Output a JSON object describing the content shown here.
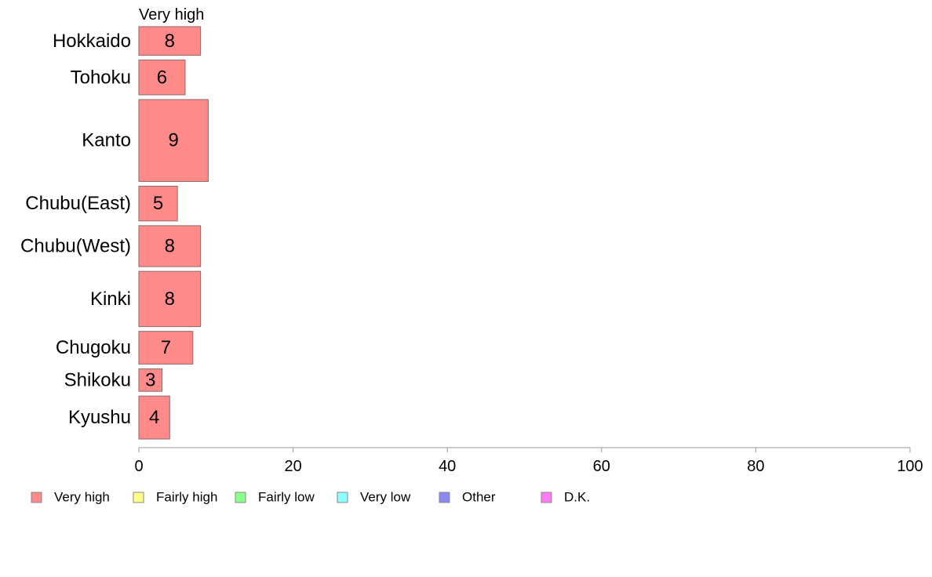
{
  "chart_data": {
    "type": "bar",
    "orientation": "horizontal",
    "stacked": true,
    "categories": [
      "Hokkaido",
      "Tohoku",
      "Kanto",
      "Chubu(East)",
      "Chubu(West)",
      "Kinki",
      "Chugoku",
      "Shikoku",
      "Kyushu"
    ],
    "series": [
      {
        "name": "Very high",
        "values": [
          8,
          6,
          9,
          5,
          8,
          8,
          7,
          3,
          4
        ],
        "color": "#ff8a8a"
      }
    ],
    "relative_sample_size": [
      0.7,
      0.85,
      2.0,
      0.85,
      1.0,
      1.35,
      0.8,
      0.55,
      1.05
    ],
    "series_title": "Very high",
    "xlim": [
      0,
      100
    ],
    "xticks": [
      0,
      20,
      40,
      60,
      80,
      100
    ],
    "grid": false,
    "legend": {
      "position": "bottom",
      "items": [
        {
          "label": "Very high",
          "color": "#ff8a8a"
        },
        {
          "label": "Fairly high",
          "color": "#ffff8a"
        },
        {
          "label": "Fairly low",
          "color": "#8aff8a"
        },
        {
          "label": "Very low",
          "color": "#8affff"
        },
        {
          "label": "Other",
          "color": "#8a8af5"
        },
        {
          "label": "D.K.",
          "color": "#ff7af5"
        }
      ]
    }
  }
}
